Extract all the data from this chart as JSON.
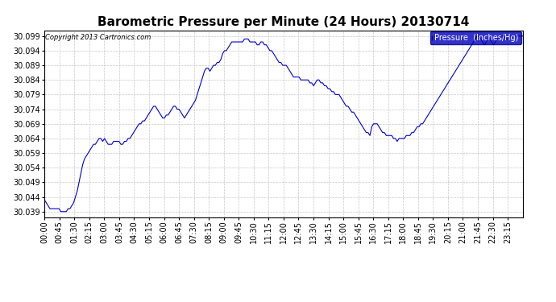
{
  "title": "Barometric Pressure per Minute (24 Hours) 20130714",
  "copyright_text": "Copyright 2013 Cartronics.com",
  "legend_label": "Pressure  (Inches/Hg)",
  "line_color": "#0000cc",
  "background_color": "#ffffff",
  "grid_color": "#c8c8c8",
  "ylim": [
    30.037,
    30.101
  ],
  "yticks": [
    30.039,
    30.044,
    30.049,
    30.054,
    30.059,
    30.064,
    30.069,
    30.074,
    30.079,
    30.084,
    30.089,
    30.094,
    30.099
  ],
  "xtick_labels": [
    "00:00",
    "00:45",
    "01:30",
    "02:15",
    "03:00",
    "03:45",
    "04:30",
    "05:15",
    "06:00",
    "06:45",
    "07:30",
    "08:15",
    "09:00",
    "09:45",
    "10:30",
    "11:15",
    "12:00",
    "12:45",
    "13:30",
    "14:15",
    "15:00",
    "15:45",
    "16:30",
    "17:15",
    "18:00",
    "18:45",
    "19:30",
    "20:15",
    "21:00",
    "21:45",
    "22:30",
    "23:15"
  ],
  "pressure_values": [
    30.043,
    30.042,
    30.041,
    30.04,
    30.04,
    30.04,
    30.04,
    30.04,
    30.04,
    30.039,
    30.039,
    30.039,
    30.039,
    30.04,
    30.04,
    30.041,
    30.042,
    30.044,
    30.046,
    30.049,
    30.052,
    30.055,
    30.057,
    30.058,
    30.059,
    30.06,
    30.061,
    30.062,
    30.062,
    30.063,
    30.064,
    30.064,
    30.063,
    30.064,
    30.063,
    30.062,
    30.062,
    30.062,
    30.063,
    30.063,
    30.063,
    30.063,
    30.062,
    30.062,
    30.063,
    30.063,
    30.064,
    30.064,
    30.065,
    30.066,
    30.067,
    30.068,
    30.069,
    30.069,
    30.07,
    30.07,
    30.071,
    30.072,
    30.073,
    30.074,
    30.075,
    30.075,
    30.074,
    30.073,
    30.072,
    30.071,
    30.071,
    30.072,
    30.072,
    30.073,
    30.074,
    30.075,
    30.075,
    30.074,
    30.074,
    30.073,
    30.072,
    30.071,
    30.072,
    30.073,
    30.074,
    30.075,
    30.076,
    30.077,
    30.079,
    30.081,
    30.083,
    30.085,
    30.087,
    30.088,
    30.088,
    30.087,
    30.088,
    30.089,
    30.089,
    30.09,
    30.09,
    30.091,
    30.093,
    30.094,
    30.094,
    30.095,
    30.096,
    30.097,
    30.097,
    30.097,
    30.097,
    30.097,
    30.097,
    30.097,
    30.098,
    30.098,
    30.098,
    30.097,
    30.097,
    30.097,
    30.097,
    30.096,
    30.096,
    30.097,
    30.097,
    30.096,
    30.096,
    30.095,
    30.094,
    30.094,
    30.093,
    30.092,
    30.091,
    30.09,
    30.09,
    30.089,
    30.089,
    30.089,
    30.088,
    30.087,
    30.086,
    30.085,
    30.085,
    30.085,
    30.085,
    30.084,
    30.084,
    30.084,
    30.084,
    30.084,
    30.083,
    30.083,
    30.082,
    30.083,
    30.084,
    30.084,
    30.083,
    30.083,
    30.082,
    30.082,
    30.081,
    30.081,
    30.08,
    30.08,
    30.079,
    30.079,
    30.079,
    30.078,
    30.077,
    30.076,
    30.075,
    30.075,
    30.074,
    30.073,
    30.073,
    30.072,
    30.071,
    30.07,
    30.069,
    30.068,
    30.067,
    30.066,
    30.066,
    30.065,
    30.068,
    30.069,
    30.069,
    30.069,
    30.068,
    30.067,
    30.066,
    30.066,
    30.065,
    30.065,
    30.065,
    30.065,
    30.064,
    30.064,
    30.063,
    30.064,
    30.064,
    30.064,
    30.064,
    30.065,
    30.065,
    30.065,
    30.066,
    30.066,
    30.067,
    30.068,
    30.068,
    30.069,
    30.069,
    30.07,
    30.071,
    30.072,
    30.073,
    30.074,
    30.075,
    30.076,
    30.077,
    30.078,
    30.079,
    30.08,
    30.081,
    30.082,
    30.083,
    30.084,
    30.085,
    30.086,
    30.087,
    30.088,
    30.089,
    30.09,
    30.091,
    30.092,
    30.093,
    30.094,
    30.095,
    30.096,
    30.097,
    30.098,
    30.099,
    30.099,
    30.098,
    30.097,
    30.096,
    30.097,
    30.098,
    30.098,
    30.097,
    30.096,
    30.097,
    30.098,
    30.098,
    30.099,
    30.099,
    30.099,
    30.098,
    30.098,
    30.099,
    30.099,
    30.099,
    30.099,
    30.099,
    30.099,
    30.099,
    30.099
  ],
  "figsize": [
    6.9,
    3.75
  ],
  "dpi": 100
}
